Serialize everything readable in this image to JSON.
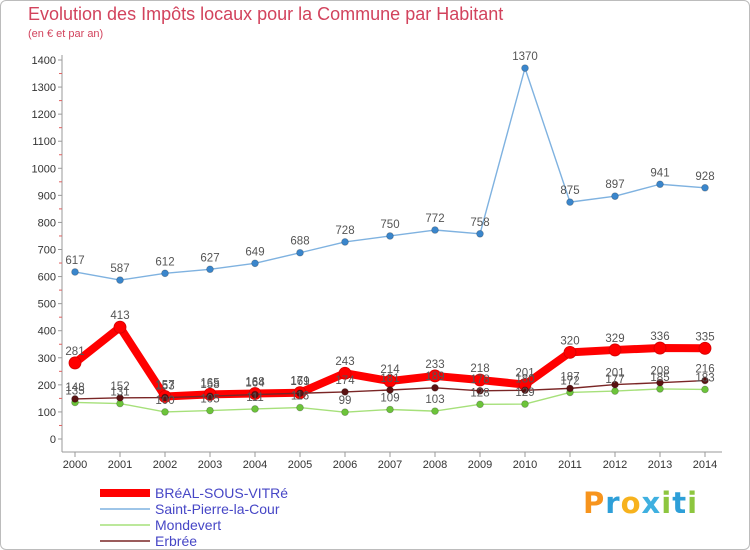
{
  "logo": {
    "text": "Proxiti",
    "letter_colors": [
      "#f7941d",
      "#2e9fd8",
      "#f7b21d",
      "#3fb0e0",
      "#8dc63f",
      "#2e9fd8",
      "#8dc63f"
    ]
  },
  "chart_data": {
    "type": "line",
    "title": "Evolution des Impôts locaux pour la Commune par Habitant",
    "subtitle": "(en € et par an)",
    "xlabel": "",
    "ylabel": "",
    "x": [
      "2000",
      "2001",
      "2002",
      "2003",
      "2004",
      "2005",
      "2006",
      "2007",
      "2008",
      "2009",
      "2010",
      "2011",
      "2012",
      "2013",
      "2014"
    ],
    "ylim": [
      0,
      1400
    ],
    "yticks": [
      0,
      100,
      200,
      300,
      400,
      500,
      600,
      700,
      800,
      900,
      1000,
      1100,
      1200,
      1300,
      1400
    ],
    "grid": false,
    "legend_position": "bottom-left",
    "series": [
      {
        "name": "BRéAL-SOUS-VITRé",
        "color": "#ff0000",
        "marker_color": "#ff0000",
        "values": [
          281,
          413,
          157,
          165,
          168,
          171,
          243,
          214,
          233,
          218,
          201,
          320,
          329,
          336,
          335
        ]
      },
      {
        "name": "Saint-Pierre-la-Cour",
        "color": "#7fb2e0",
        "marker_color": "#3a86cc",
        "values": [
          617,
          587,
          612,
          627,
          649,
          688,
          728,
          750,
          772,
          758,
          1370,
          875,
          897,
          941,
          928
        ]
      },
      {
        "name": "Mondevert",
        "color": "#a6e07a",
        "marker_color": "#6cc43a",
        "values": [
          135,
          131,
          100,
          105,
          111,
          116,
          99,
          109,
          103,
          128,
          129,
          172,
          177,
          185,
          183
        ]
      },
      {
        "name": "Erbrée",
        "color": "#7a2626",
        "marker_color": "#5a1212",
        "values": [
          148,
          152,
          153,
          158,
          164,
          169,
          174,
          181,
          189,
          178,
          180,
          187,
          201,
          208,
          216
        ]
      }
    ]
  }
}
